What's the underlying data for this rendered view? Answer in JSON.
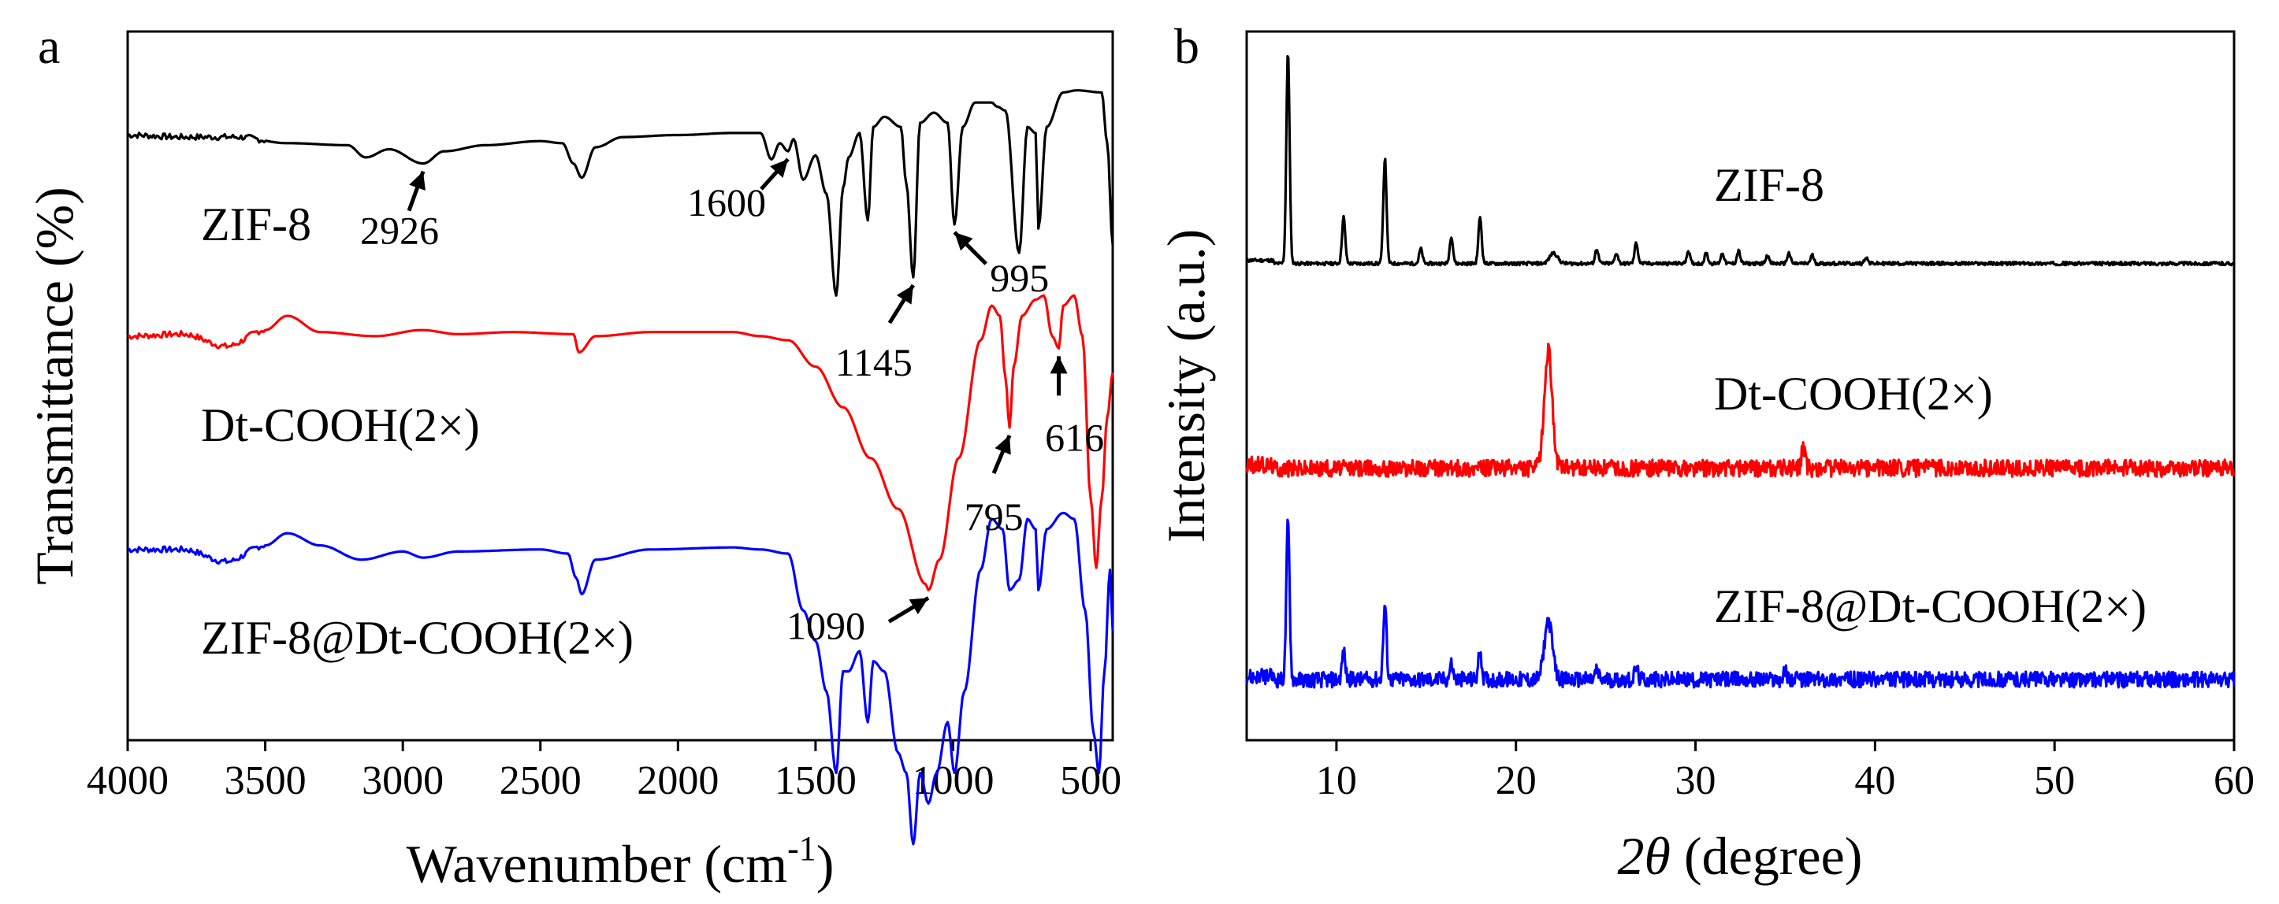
{
  "chart_data": [
    {
      "panel": "a",
      "type": "line",
      "title": "",
      "xlabel": "Wavenumber (cm",
      "xlabel_sup": "-1",
      "xlabel_close": ")",
      "ylabel": "Transmittance (%)",
      "xlim": [
        4000,
        420
      ],
      "x_reversed": true,
      "xticks": [
        4000,
        3500,
        3000,
        2500,
        2000,
        1500,
        1000,
        500
      ],
      "xtick_labels": [
        "4000",
        "3500",
        "3000",
        "2500",
        "2000",
        "1500",
        "1000",
        "500"
      ],
      "yticks_shown": false,
      "series": [
        {
          "name": "ZIF-8",
          "color": "#000000",
          "offset": 2,
          "points": [
            [
              4000,
              0.84
            ],
            [
              3800,
              0.83
            ],
            [
              3600,
              0.83
            ],
            [
              3420,
              0.8
            ],
            [
              3200,
              0.79
            ],
            [
              3135,
              0.73
            ],
            [
              3050,
              0.77
            ],
            [
              2926,
              0.7
            ],
            [
              2850,
              0.76
            ],
            [
              2700,
              0.79
            ],
            [
              2500,
              0.81
            ],
            [
              2420,
              0.8
            ],
            [
              2380,
              0.7
            ],
            [
              2350,
              0.63
            ],
            [
              2300,
              0.78
            ],
            [
              2200,
              0.83
            ],
            [
              2000,
              0.84
            ],
            [
              1800,
              0.85
            ],
            [
              1700,
              0.85
            ],
            [
              1660,
              0.72
            ],
            [
              1630,
              0.8
            ],
            [
              1600,
              0.76
            ],
            [
              1580,
              0.82
            ],
            [
              1545,
              0.62
            ],
            [
              1500,
              0.74
            ],
            [
              1460,
              0.55
            ],
            [
              1425,
              0.05
            ],
            [
              1400,
              0.58
            ],
            [
              1380,
              0.73
            ],
            [
              1340,
              0.85
            ],
            [
              1310,
              0.42
            ],
            [
              1290,
              0.88
            ],
            [
              1250,
              0.93
            ],
            [
              1190,
              0.88
            ],
            [
              1170,
              0.6
            ],
            [
              1145,
              0.14
            ],
            [
              1120,
              0.9
            ],
            [
              1070,
              0.95
            ],
            [
              1020,
              0.9
            ],
            [
              995,
              0.4
            ],
            [
              965,
              0.88
            ],
            [
              920,
              1.0
            ],
            [
              860,
              1.0
            ],
            [
              840,
              0.98
            ],
            [
              810,
              0.96
            ],
            [
              760,
              0.26
            ],
            [
              730,
              0.88
            ],
            [
              700,
              0.85
            ],
            [
              690,
              0.38
            ],
            [
              660,
              0.88
            ],
            [
              600,
              1.05
            ],
            [
              550,
              1.06
            ],
            [
              460,
              1.05
            ],
            [
              440,
              0.8
            ],
            [
              420,
              0.3
            ]
          ]
        },
        {
          "name": "Dt-COOH(2×)",
          "color": "#ff0000",
          "offset": 1,
          "points": [
            [
              4000,
              0.9
            ],
            [
              3800,
              0.91
            ],
            [
              3640,
              0.85
            ],
            [
              3500,
              0.93
            ],
            [
              3420,
              1.0
            ],
            [
              3300,
              0.92
            ],
            [
              3100,
              0.9
            ],
            [
              2930,
              0.93
            ],
            [
              2800,
              0.91
            ],
            [
              2600,
              0.92
            ],
            [
              2380,
              0.91
            ],
            [
              2360,
              0.82
            ],
            [
              2300,
              0.9
            ],
            [
              2100,
              0.92
            ],
            [
              1800,
              0.92
            ],
            [
              1700,
              0.9
            ],
            [
              1600,
              0.88
            ],
            [
              1500,
              0.75
            ],
            [
              1400,
              0.55
            ],
            [
              1300,
              0.3
            ],
            [
              1200,
              0.05
            ],
            [
              1100,
              -0.32
            ],
            [
              1090,
              -0.35
            ],
            [
              1050,
              -0.2
            ],
            [
              980,
              0.3
            ],
            [
              900,
              0.88
            ],
            [
              860,
              1.05
            ],
            [
              830,
              1.0
            ],
            [
              810,
              0.7
            ],
            [
              795,
              0.45
            ],
            [
              780,
              0.75
            ],
            [
              750,
              1.0
            ],
            [
              700,
              1.08
            ],
            [
              670,
              1.1
            ],
            [
              640,
              0.9
            ],
            [
              616,
              0.84
            ],
            [
              600,
              1.05
            ],
            [
              560,
              1.1
            ],
            [
              530,
              0.9
            ],
            [
              500,
              0.1
            ],
            [
              480,
              -0.24
            ],
            [
              460,
              0.1
            ],
            [
              440,
              0.5
            ],
            [
              420,
              0.72
            ]
          ]
        },
        {
          "name": "ZIF-8@Dt-COOH(2×)",
          "color": "#0000ff",
          "offset": 0,
          "points": [
            [
              4000,
              0.9
            ],
            [
              3800,
              0.9
            ],
            [
              3640,
              0.84
            ],
            [
              3500,
              0.92
            ],
            [
              3420,
              0.98
            ],
            [
              3300,
              0.92
            ],
            [
              3150,
              0.85
            ],
            [
              3000,
              0.89
            ],
            [
              2926,
              0.86
            ],
            [
              2800,
              0.89
            ],
            [
              2500,
              0.9
            ],
            [
              2400,
              0.88
            ],
            [
              2370,
              0.76
            ],
            [
              2350,
              0.68
            ],
            [
              2300,
              0.85
            ],
            [
              2100,
              0.9
            ],
            [
              1800,
              0.91
            ],
            [
              1700,
              0.9
            ],
            [
              1600,
              0.88
            ],
            [
              1545,
              0.6
            ],
            [
              1500,
              0.45
            ],
            [
              1460,
              0.2
            ],
            [
              1425,
              -0.2
            ],
            [
              1400,
              0.3
            ],
            [
              1380,
              0.3
            ],
            [
              1340,
              0.4
            ],
            [
              1310,
              0.05
            ],
            [
              1290,
              0.35
            ],
            [
              1250,
              0.3
            ],
            [
              1200,
              -0.1
            ],
            [
              1170,
              -0.2
            ],
            [
              1145,
              -0.55
            ],
            [
              1120,
              -0.2
            ],
            [
              1090,
              -0.35
            ],
            [
              1060,
              -0.2
            ],
            [
              1020,
              0.05
            ],
            [
              995,
              -0.2
            ],
            [
              960,
              0.2
            ],
            [
              900,
              0.8
            ],
            [
              860,
              1.05
            ],
            [
              820,
              1.0
            ],
            [
              795,
              0.7
            ],
            [
              760,
              0.75
            ],
            [
              730,
              1.05
            ],
            [
              700,
              1.0
            ],
            [
              690,
              0.7
            ],
            [
              660,
              1.0
            ],
            [
              600,
              1.08
            ],
            [
              560,
              1.05
            ],
            [
              520,
              0.6
            ],
            [
              490,
              0.0
            ],
            [
              470,
              -0.2
            ],
            [
              450,
              0.3
            ],
            [
              430,
              0.8
            ],
            [
              420,
              0.5
            ]
          ]
        }
      ],
      "series_labels": [
        "ZIF-8",
        "Dt-COOH(2×)",
        "ZIF-8@Dt-COOH(2×)"
      ],
      "zif_label_main": "ZIF-8",
      "annotations": [
        {
          "text": "2926",
          "target": 2926,
          "series": "ZIF-8"
        },
        {
          "text": "1600",
          "target": 1600,
          "series": "ZIF-8"
        },
        {
          "text": "1145",
          "target": 1145,
          "series": "ZIF-8"
        },
        {
          "text": "995",
          "target": 995,
          "series": "ZIF-8"
        },
        {
          "text": "1090",
          "target": 1090,
          "series": "Dt-COOH(2×)"
        },
        {
          "text": "795",
          "target": 795,
          "series": "Dt-COOH(2×)"
        },
        {
          "text": "616",
          "target": 616,
          "series": "Dt-COOH(2×)"
        }
      ]
    },
    {
      "panel": "b",
      "type": "line",
      "title": "",
      "xlabel_symbol": "2θ",
      "xlabel": " (degree)",
      "ylabel": "Intensity (a.u.)",
      "xlim": [
        5,
        60
      ],
      "xticks": [
        10,
        20,
        30,
        40,
        50,
        60
      ],
      "xtick_labels": [
        "10",
        "20",
        "30",
        "40",
        "50",
        "60"
      ],
      "yticks_shown": false,
      "series": [
        {
          "name": "ZIF-8",
          "color": "#000000",
          "baseline": 0.02,
          "noise": 0.008,
          "peaks": [
            [
              7.3,
              1.0
            ],
            [
              10.4,
              0.22
            ],
            [
              12.7,
              0.5
            ],
            [
              14.7,
              0.07
            ],
            [
              16.4,
              0.13
            ],
            [
              18.0,
              0.22
            ],
            [
              22.1,
              0.05
            ],
            [
              24.5,
              0.07
            ],
            [
              25.6,
              0.05
            ],
            [
              26.7,
              0.1
            ],
            [
              29.6,
              0.06
            ],
            [
              30.6,
              0.05
            ],
            [
              31.5,
              0.05
            ],
            [
              32.4,
              0.06
            ],
            [
              34.0,
              0.04
            ],
            [
              35.2,
              0.05
            ],
            [
              36.5,
              0.04
            ],
            [
              39.5,
              0.03
            ]
          ]
        },
        {
          "name": "Dt-COOH(2×)",
          "color": "#ff0000",
          "baseline": 0.02,
          "noise": 0.04,
          "peaks": [
            [
              21.8,
              0.55
            ],
            [
              36.0,
              0.1
            ]
          ]
        },
        {
          "name": "ZIF-8@Dt-COOH(2×)",
          "color": "#0000ff",
          "baseline": 0.02,
          "noise": 0.04,
          "peaks": [
            [
              7.3,
              0.8
            ],
            [
              10.4,
              0.14
            ],
            [
              12.7,
              0.38
            ],
            [
              16.4,
              0.08
            ],
            [
              18.0,
              0.15
            ],
            [
              21.8,
              0.3
            ],
            [
              24.5,
              0.05
            ],
            [
              26.7,
              0.06
            ],
            [
              35.0,
              0.04
            ]
          ]
        }
      ],
      "series_labels": [
        "ZIF-8",
        "Dt-COOH(2×)",
        "ZIF-8@Dt-COOH(2×)"
      ]
    }
  ]
}
